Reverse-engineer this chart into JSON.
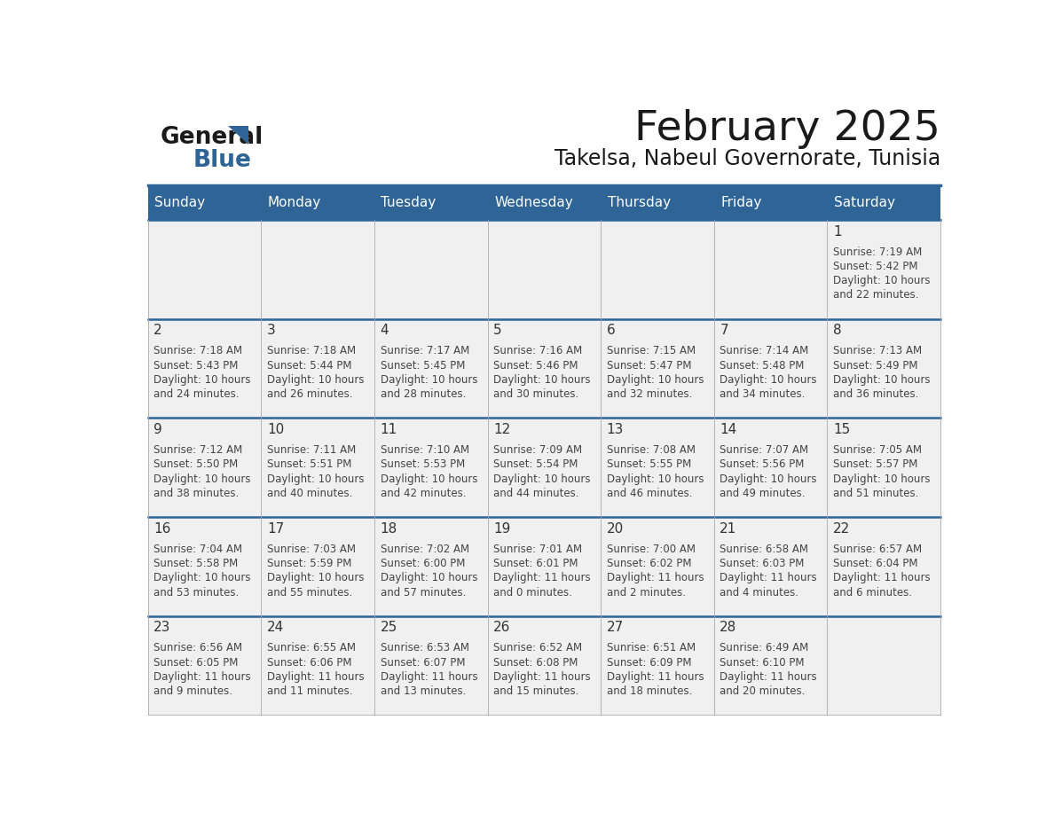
{
  "title": "February 2025",
  "subtitle": "Takelsa, Nabeul Governorate, Tunisia",
  "header_color": "#2e6496",
  "header_text_color": "#ffffff",
  "cell_bg_color": "#f0f0f0",
  "day_headers": [
    "Sunday",
    "Monday",
    "Tuesday",
    "Wednesday",
    "Thursday",
    "Friday",
    "Saturday"
  ],
  "logo_text1": "General",
  "logo_text2": "Blue",
  "logo_color": "#2e6496",
  "days": [
    {
      "day": 1,
      "col": 6,
      "row": 0,
      "sunrise": "7:19 AM",
      "sunset": "5:42 PM",
      "daylight": "10 hours and 22 minutes."
    },
    {
      "day": 2,
      "col": 0,
      "row": 1,
      "sunrise": "7:18 AM",
      "sunset": "5:43 PM",
      "daylight": "10 hours and 24 minutes."
    },
    {
      "day": 3,
      "col": 1,
      "row": 1,
      "sunrise": "7:18 AM",
      "sunset": "5:44 PM",
      "daylight": "10 hours and 26 minutes."
    },
    {
      "day": 4,
      "col": 2,
      "row": 1,
      "sunrise": "7:17 AM",
      "sunset": "5:45 PM",
      "daylight": "10 hours and 28 minutes."
    },
    {
      "day": 5,
      "col": 3,
      "row": 1,
      "sunrise": "7:16 AM",
      "sunset": "5:46 PM",
      "daylight": "10 hours and 30 minutes."
    },
    {
      "day": 6,
      "col": 4,
      "row": 1,
      "sunrise": "7:15 AM",
      "sunset": "5:47 PM",
      "daylight": "10 hours and 32 minutes."
    },
    {
      "day": 7,
      "col": 5,
      "row": 1,
      "sunrise": "7:14 AM",
      "sunset": "5:48 PM",
      "daylight": "10 hours and 34 minutes."
    },
    {
      "day": 8,
      "col": 6,
      "row": 1,
      "sunrise": "7:13 AM",
      "sunset": "5:49 PM",
      "daylight": "10 hours and 36 minutes."
    },
    {
      "day": 9,
      "col": 0,
      "row": 2,
      "sunrise": "7:12 AM",
      "sunset": "5:50 PM",
      "daylight": "10 hours and 38 minutes."
    },
    {
      "day": 10,
      "col": 1,
      "row": 2,
      "sunrise": "7:11 AM",
      "sunset": "5:51 PM",
      "daylight": "10 hours and 40 minutes."
    },
    {
      "day": 11,
      "col": 2,
      "row": 2,
      "sunrise": "7:10 AM",
      "sunset": "5:53 PM",
      "daylight": "10 hours and 42 minutes."
    },
    {
      "day": 12,
      "col": 3,
      "row": 2,
      "sunrise": "7:09 AM",
      "sunset": "5:54 PM",
      "daylight": "10 hours and 44 minutes."
    },
    {
      "day": 13,
      "col": 4,
      "row": 2,
      "sunrise": "7:08 AM",
      "sunset": "5:55 PM",
      "daylight": "10 hours and 46 minutes."
    },
    {
      "day": 14,
      "col": 5,
      "row": 2,
      "sunrise": "7:07 AM",
      "sunset": "5:56 PM",
      "daylight": "10 hours and 49 minutes."
    },
    {
      "day": 15,
      "col": 6,
      "row": 2,
      "sunrise": "7:05 AM",
      "sunset": "5:57 PM",
      "daylight": "10 hours and 51 minutes."
    },
    {
      "day": 16,
      "col": 0,
      "row": 3,
      "sunrise": "7:04 AM",
      "sunset": "5:58 PM",
      "daylight": "10 hours and 53 minutes."
    },
    {
      "day": 17,
      "col": 1,
      "row": 3,
      "sunrise": "7:03 AM",
      "sunset": "5:59 PM",
      "daylight": "10 hours and 55 minutes."
    },
    {
      "day": 18,
      "col": 2,
      "row": 3,
      "sunrise": "7:02 AM",
      "sunset": "6:00 PM",
      "daylight": "10 hours and 57 minutes."
    },
    {
      "day": 19,
      "col": 3,
      "row": 3,
      "sunrise": "7:01 AM",
      "sunset": "6:01 PM",
      "daylight": "11 hours and 0 minutes."
    },
    {
      "day": 20,
      "col": 4,
      "row": 3,
      "sunrise": "7:00 AM",
      "sunset": "6:02 PM",
      "daylight": "11 hours and 2 minutes."
    },
    {
      "day": 21,
      "col": 5,
      "row": 3,
      "sunrise": "6:58 AM",
      "sunset": "6:03 PM",
      "daylight": "11 hours and 4 minutes."
    },
    {
      "day": 22,
      "col": 6,
      "row": 3,
      "sunrise": "6:57 AM",
      "sunset": "6:04 PM",
      "daylight": "11 hours and 6 minutes."
    },
    {
      "day": 23,
      "col": 0,
      "row": 4,
      "sunrise": "6:56 AM",
      "sunset": "6:05 PM",
      "daylight": "11 hours and 9 minutes."
    },
    {
      "day": 24,
      "col": 1,
      "row": 4,
      "sunrise": "6:55 AM",
      "sunset": "6:06 PM",
      "daylight": "11 hours and 11 minutes."
    },
    {
      "day": 25,
      "col": 2,
      "row": 4,
      "sunrise": "6:53 AM",
      "sunset": "6:07 PM",
      "daylight": "11 hours and 13 minutes."
    },
    {
      "day": 26,
      "col": 3,
      "row": 4,
      "sunrise": "6:52 AM",
      "sunset": "6:08 PM",
      "daylight": "11 hours and 15 minutes."
    },
    {
      "day": 27,
      "col": 4,
      "row": 4,
      "sunrise": "6:51 AM",
      "sunset": "6:09 PM",
      "daylight": "11 hours and 18 minutes."
    },
    {
      "day": 28,
      "col": 5,
      "row": 4,
      "sunrise": "6:49 AM",
      "sunset": "6:10 PM",
      "daylight": "11 hours and 20 minutes."
    }
  ]
}
